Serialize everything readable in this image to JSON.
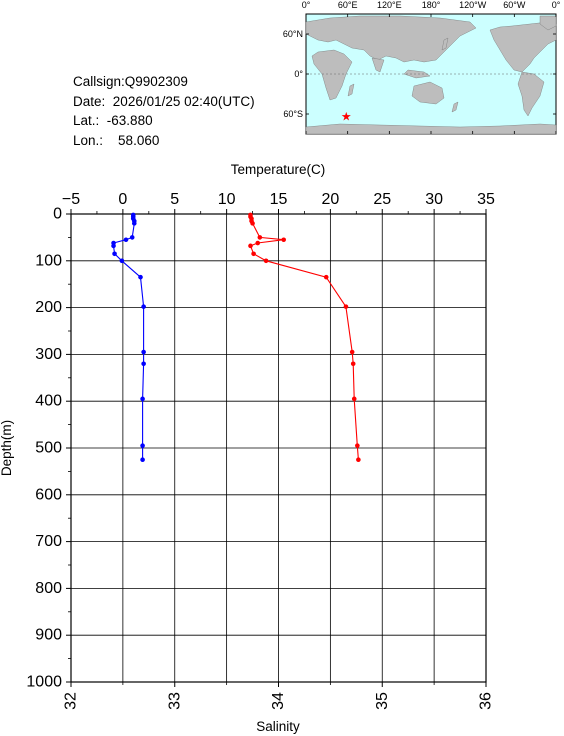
{
  "info": {
    "callsign": "Callsign:Q9902309",
    "date_label": "Date:",
    "date_value": "2026/01/25 02:40(UTC)",
    "lat_label": "Lat.:",
    "lat_value": "-63.880",
    "lon_label": "Lon.:",
    "lon_value": "58.060"
  },
  "map": {
    "lon_ticks": [
      "0°",
      "60°E",
      "120°E",
      "180°",
      "120°W",
      "60°W",
      "0°"
    ],
    "lat_ticks": [
      "60°N",
      "0°",
      "60°S"
    ],
    "marker_lon": 58.06,
    "marker_lat": -63.88,
    "ocean_color": "#ccffff",
    "land_color": "#bdbdbd",
    "marker_color": "#ff0000"
  },
  "chart_data": {
    "type": "line",
    "top_axis_label": "Temperature(C)",
    "bottom_axis_label": "Salinity",
    "ylabel": "Depth(m)",
    "temperature_range": [
      -5,
      35
    ],
    "temperature_ticks": [
      "−5",
      "0",
      "5",
      "10",
      "15",
      "20",
      "25",
      "30",
      "35"
    ],
    "salinity_range": [
      32,
      36
    ],
    "salinity_ticks": [
      "32",
      "33",
      "34",
      "35",
      "36"
    ],
    "depth_range": [
      0,
      1000
    ],
    "depth_ticks": [
      "0",
      "100",
      "200",
      "300",
      "400",
      "500",
      "600",
      "700",
      "800",
      "900",
      "1000"
    ],
    "grid": true,
    "series": [
      {
        "name": "Temperature",
        "color": "#0000ff",
        "axis": "temperature",
        "points": [
          {
            "x": 1.0,
            "y": 2
          },
          {
            "x": 1.0,
            "y": 6
          },
          {
            "x": 1.0,
            "y": 10
          },
          {
            "x": 1.1,
            "y": 15
          },
          {
            "x": 1.1,
            "y": 20
          },
          {
            "x": 0.9,
            "y": 50
          },
          {
            "x": 0.3,
            "y": 55
          },
          {
            "x": -0.9,
            "y": 62
          },
          {
            "x": -0.9,
            "y": 68
          },
          {
            "x": -0.8,
            "y": 85
          },
          {
            "x": -0.1,
            "y": 100
          },
          {
            "x": 1.7,
            "y": 135
          },
          {
            "x": 2.0,
            "y": 198
          },
          {
            "x": 2.0,
            "y": 295
          },
          {
            "x": 2.0,
            "y": 320
          },
          {
            "x": 1.9,
            "y": 395
          },
          {
            "x": 1.9,
            "y": 495
          },
          {
            "x": 1.9,
            "y": 525
          }
        ]
      },
      {
        "name": "Salinity",
        "color": "#ff0000",
        "axis": "salinity",
        "points": [
          {
            "x": 33.73,
            "y": 2
          },
          {
            "x": 33.73,
            "y": 6
          },
          {
            "x": 33.74,
            "y": 10
          },
          {
            "x": 33.74,
            "y": 15
          },
          {
            "x": 33.75,
            "y": 20
          },
          {
            "x": 33.82,
            "y": 50
          },
          {
            "x": 34.05,
            "y": 55
          },
          {
            "x": 33.8,
            "y": 62
          },
          {
            "x": 33.73,
            "y": 68
          },
          {
            "x": 33.76,
            "y": 85
          },
          {
            "x": 33.88,
            "y": 100
          },
          {
            "x": 34.46,
            "y": 135
          },
          {
            "x": 34.65,
            "y": 198
          },
          {
            "x": 34.71,
            "y": 295
          },
          {
            "x": 34.72,
            "y": 320
          },
          {
            "x": 34.73,
            "y": 395
          },
          {
            "x": 34.76,
            "y": 495
          },
          {
            "x": 34.77,
            "y": 525
          }
        ]
      }
    ]
  }
}
